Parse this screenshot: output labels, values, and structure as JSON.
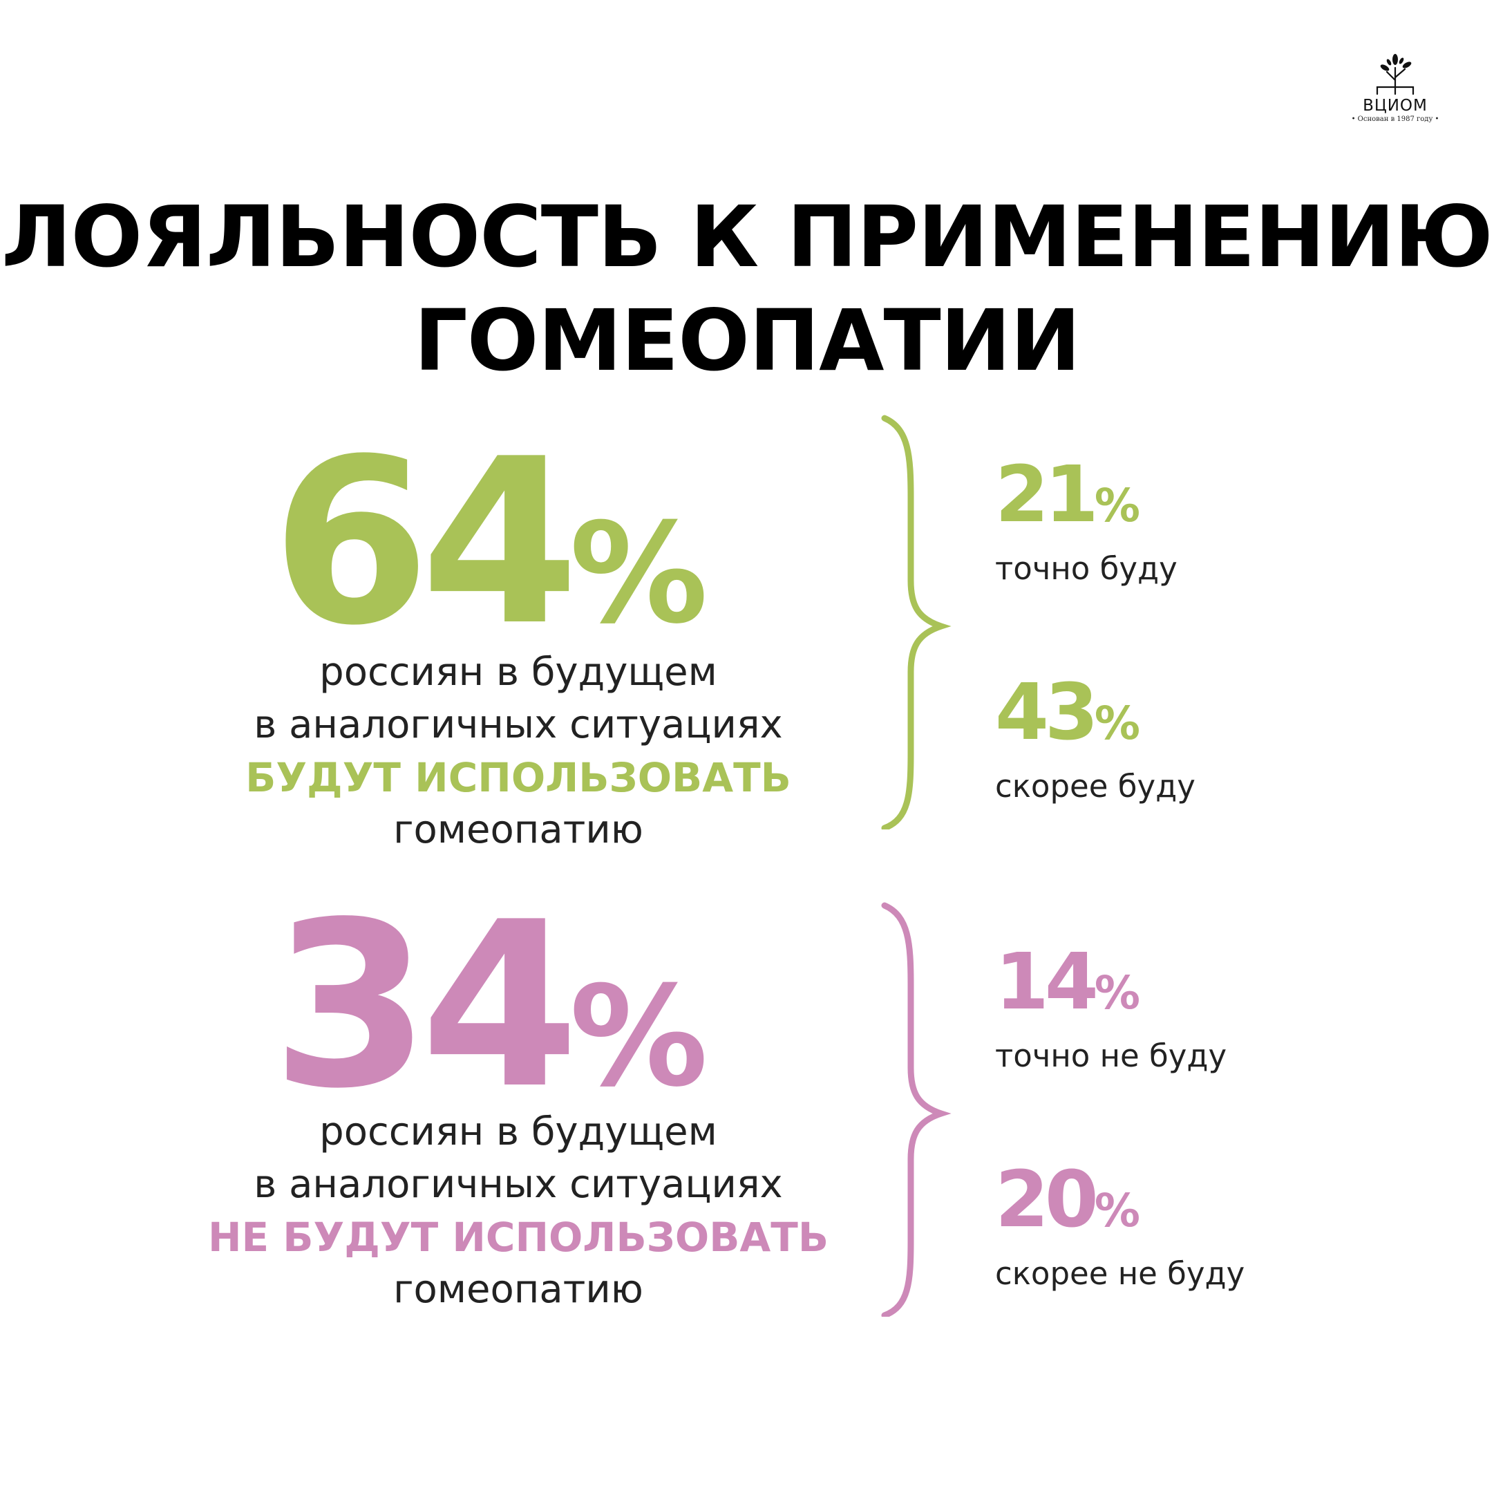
{
  "logo": {
    "name": "ВЦИОМ",
    "subtitle": "• Основан в 1987 году •"
  },
  "title": {
    "line1": "ЛОЯЛЬНОСТЬ К ПРИМЕНЕНИЮ",
    "line2": "ГОМЕОПАТИИ"
  },
  "colors": {
    "green": "#a9c257",
    "pink": "#cd89b8",
    "text": "#222222"
  },
  "blocks": [
    {
      "value": "64",
      "pct": "%",
      "line1": "россиян в будущем",
      "line2": "в аналогичных ситуациях",
      "accent": "БУДУТ ИСПОЛЬЗОВАТЬ",
      "line4": "гомеопатию",
      "parts": [
        {
          "value": "21",
          "pct": "%",
          "label": "точно буду"
        },
        {
          "value": "43",
          "pct": "%",
          "label": "скорее буду"
        }
      ]
    },
    {
      "value": "34",
      "pct": "%",
      "line1": "россиян в будущем",
      "line2": "в аналогичных ситуациях",
      "accent": "НЕ БУДУТ ИСПОЛЬЗОВАТЬ",
      "line4": "гомеопатию",
      "parts": [
        {
          "value": "14",
          "pct": "%",
          "label": "точно не буду"
        },
        {
          "value": "20",
          "pct": "%",
          "label": "скорее не буду"
        }
      ]
    }
  ]
}
